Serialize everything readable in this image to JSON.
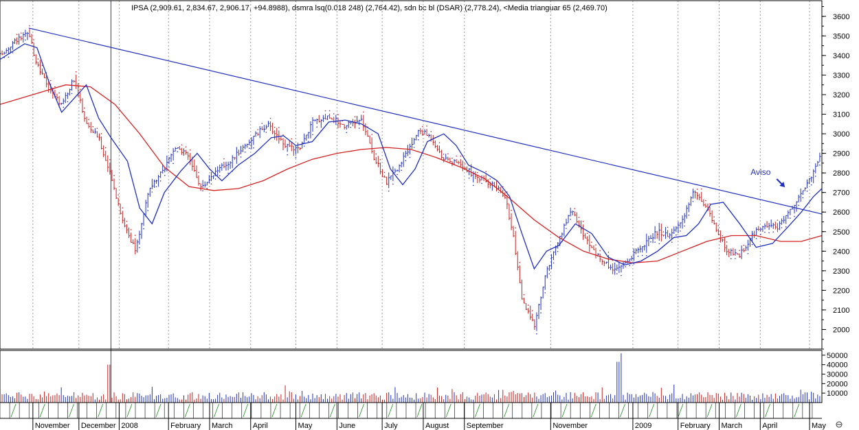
{
  "chart_data": {
    "type": "line",
    "header": "IPSA (2,909.61, 2,834.67, 2,906.17, +94.8988), dsmra lsq(0.018 248) (2,764.42), sdn bc bl (DSAR) (2,778.24), <Media trianguar 65 (2,469.70)",
    "title": "",
    "xlabel": "",
    "ylabel": "",
    "ylim": [
      1900,
      3680
    ],
    "price_ticks": [
      2000,
      2100,
      2200,
      2300,
      2400,
      2500,
      2600,
      2700,
      2800,
      2900,
      3000,
      3100,
      3200,
      3300,
      3400,
      3500,
      3600
    ],
    "volume_ticks": [
      "50000",
      "40000",
      "30000",
      "20000",
      "10000"
    ],
    "volume_max": 55000,
    "month_labels": [
      {
        "label": "November",
        "pos": 0.04
      },
      {
        "label": "December",
        "pos": 0.096
      },
      {
        "label": "2008",
        "pos": 0.145
      },
      {
        "label": "February",
        "pos": 0.205
      },
      {
        "label": "March",
        "pos": 0.255
      },
      {
        "label": "April",
        "pos": 0.305
      },
      {
        "label": "May",
        "pos": 0.36
      },
      {
        "label": "June",
        "pos": 0.41
      },
      {
        "label": "July",
        "pos": 0.465
      },
      {
        "label": "August",
        "pos": 0.515
      },
      {
        "label": "September",
        "pos": 0.565
      },
      {
        "label": "November",
        "pos": 0.67
      },
      {
        "label": "2009",
        "pos": 0.77
      },
      {
        "label": "February",
        "pos": 0.825
      },
      {
        "label": "March",
        "pos": 0.875
      },
      {
        "label": "April",
        "pos": 0.925
      },
      {
        "label": "May",
        "pos": 0.985
      }
    ],
    "price_series": {
      "name": "IPSA",
      "pos": [
        0.0,
        0.02,
        0.035,
        0.045,
        0.06,
        0.075,
        0.09,
        0.105,
        0.12,
        0.135,
        0.15,
        0.165,
        0.18,
        0.2,
        0.215,
        0.23,
        0.245,
        0.26,
        0.28,
        0.3,
        0.325,
        0.35,
        0.365,
        0.38,
        0.4,
        0.42,
        0.44,
        0.455,
        0.47,
        0.48,
        0.495,
        0.51,
        0.525,
        0.54,
        0.56,
        0.58,
        0.6,
        0.615,
        0.625,
        0.635,
        0.65,
        0.665,
        0.68,
        0.695,
        0.71,
        0.73,
        0.75,
        0.765,
        0.78,
        0.8,
        0.815,
        0.83,
        0.845,
        0.86,
        0.87,
        0.885,
        0.9,
        0.915,
        0.93,
        0.945,
        0.96,
        0.975,
        0.99,
        1.0
      ],
      "values": [
        3400,
        3480,
        3510,
        3350,
        3230,
        3150,
        3280,
        3050,
        2980,
        2780,
        2550,
        2400,
        2700,
        2820,
        2940,
        2880,
        2720,
        2800,
        2860,
        2950,
        3050,
        2930,
        2920,
        3060,
        3090,
        3040,
        3070,
        2880,
        2750,
        2800,
        2900,
        3020,
        2980,
        2870,
        2840,
        2780,
        2740,
        2680,
        2460,
        2150,
        2020,
        2300,
        2450,
        2620,
        2480,
        2360,
        2300,
        2360,
        2420,
        2500,
        2480,
        2560,
        2710,
        2620,
        2520,
        2400,
        2380,
        2480,
        2540,
        2520,
        2600,
        2700,
        2800,
        2910
      ]
    },
    "ma_fast": {
      "name": "dsmra lsq",
      "pos": [
        0.0,
        0.03,
        0.045,
        0.06,
        0.075,
        0.09,
        0.105,
        0.12,
        0.135,
        0.155,
        0.17,
        0.185,
        0.2,
        0.22,
        0.24,
        0.255,
        0.27,
        0.29,
        0.31,
        0.33,
        0.345,
        0.36,
        0.38,
        0.4,
        0.42,
        0.44,
        0.46,
        0.475,
        0.49,
        0.505,
        0.52,
        0.54,
        0.555,
        0.57,
        0.59,
        0.605,
        0.62,
        0.635,
        0.65,
        0.665,
        0.68,
        0.7,
        0.72,
        0.74,
        0.76,
        0.78,
        0.8,
        0.82,
        0.835,
        0.85,
        0.865,
        0.88,
        0.9,
        0.92,
        0.94,
        0.96,
        0.975,
        0.99,
        1.0
      ],
      "values": [
        3380,
        3460,
        3440,
        3260,
        3110,
        3180,
        3250,
        3080,
        2980,
        2860,
        2620,
        2540,
        2700,
        2810,
        2900,
        2820,
        2760,
        2840,
        2900,
        2980,
        2990,
        2940,
        2960,
        3060,
        3070,
        3050,
        3000,
        2820,
        2740,
        2820,
        2960,
        3000,
        2940,
        2840,
        2800,
        2760,
        2680,
        2490,
        2310,
        2400,
        2430,
        2540,
        2490,
        2370,
        2330,
        2350,
        2400,
        2470,
        2480,
        2540,
        2640,
        2650,
        2540,
        2420,
        2440,
        2530,
        2600,
        2680,
        2720
      ]
    },
    "ma_slow": {
      "name": "Media trianguar 65",
      "pos": [
        0.0,
        0.04,
        0.08,
        0.11,
        0.14,
        0.17,
        0.2,
        0.23,
        0.26,
        0.29,
        0.32,
        0.35,
        0.38,
        0.41,
        0.44,
        0.47,
        0.5,
        0.53,
        0.56,
        0.59,
        0.62,
        0.65,
        0.68,
        0.71,
        0.74,
        0.77,
        0.8,
        0.83,
        0.86,
        0.89,
        0.92,
        0.95,
        0.975,
        1.0
      ],
      "values": [
        3150,
        3200,
        3250,
        3240,
        3150,
        3000,
        2830,
        2730,
        2710,
        2720,
        2760,
        2820,
        2870,
        2900,
        2920,
        2930,
        2920,
        2880,
        2830,
        2770,
        2670,
        2560,
        2470,
        2400,
        2360,
        2340,
        2350,
        2400,
        2450,
        2480,
        2480,
        2450,
        2450,
        2480
      ]
    },
    "trendline": {
      "name": "trendline",
      "start": {
        "pos": 0.035,
        "value": 3540
      },
      "end": {
        "pos": 1.0,
        "value": 2590
      }
    },
    "cursor_pos": 0.135,
    "annotations": [
      {
        "text": "Aviso",
        "pos": 0.93,
        "value": 2790
      }
    ]
  }
}
